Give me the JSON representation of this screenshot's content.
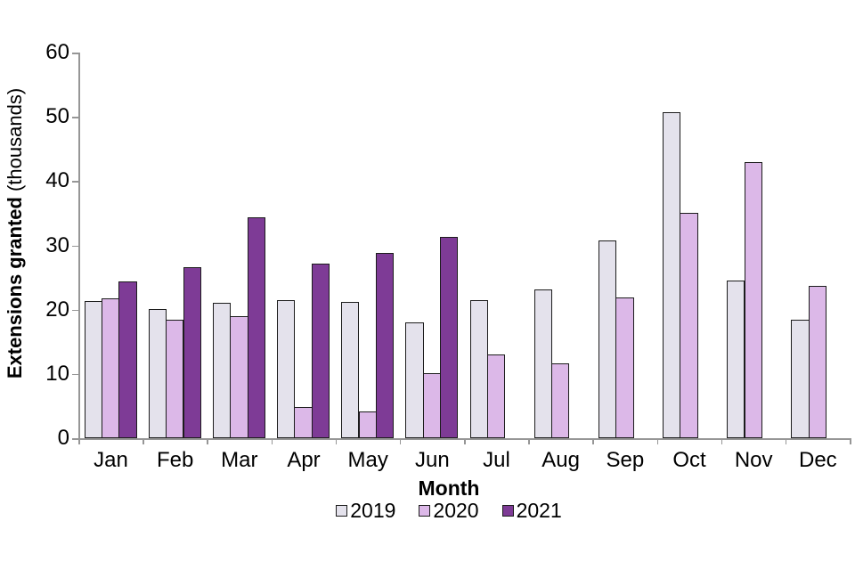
{
  "chart_data": {
    "type": "bar",
    "title": "",
    "xlabel": "Month",
    "ylabel_bold": "Extensions granted",
    "ylabel_unit": "(thousands)",
    "categories": [
      "Jan",
      "Feb",
      "Mar",
      "Apr",
      "May",
      "Jun",
      "Jul",
      "Aug",
      "Sep",
      "Oct",
      "Nov",
      "Dec"
    ],
    "series": [
      {
        "name": "2019",
        "color": "#e4e2ec",
        "values": [
          21.4,
          20.1,
          21.1,
          21.5,
          21.2,
          18.0,
          21.5,
          23.2,
          30.7,
          50.7,
          24.5,
          18.4
        ]
      },
      {
        "name": "2020",
        "color": "#dcb8e8",
        "values": [
          21.7,
          18.4,
          19.0,
          4.8,
          4.1,
          10.1,
          13.0,
          11.6,
          21.9,
          35.0,
          42.9,
          23.7
        ]
      },
      {
        "name": "2021",
        "color": "#7e3b96",
        "values": [
          24.4,
          26.6,
          34.3,
          27.1,
          28.8,
          31.3,
          null,
          null,
          null,
          null,
          null,
          null
        ]
      }
    ],
    "yticks": [
      0,
      10,
      20,
      30,
      40,
      50,
      60
    ],
    "ylim": [
      0,
      60
    ],
    "grid": false,
    "legend_position": "bottom",
    "bar_outline_color": "#1c1c1c",
    "axis_color": "#969696",
    "background_color": "#ffffff"
  }
}
